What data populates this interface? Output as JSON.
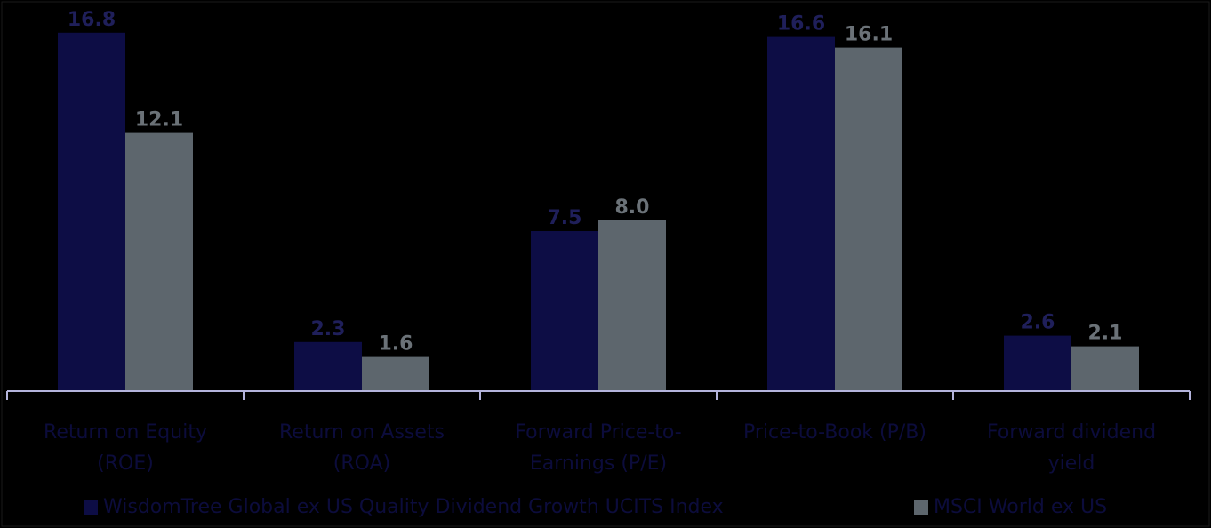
{
  "chart_data": {
    "type": "bar",
    "title": "",
    "xlabel": "",
    "ylabel": "",
    "ylim": [
      0,
      17.5
    ],
    "grid": false,
    "legend_placement": "bottom",
    "categories": [
      [
        "Return on Equity",
        "(ROE)"
      ],
      [
        "Return on Assets",
        "(ROA)"
      ],
      [
        "Forward Price-to-",
        "Earnings (P/E)"
      ],
      [
        "Price-to-Book (P/B)"
      ],
      [
        "Forward dividend",
        "yield"
      ]
    ],
    "series": [
      {
        "name": "WisdomTree Global ex US Quality Dividend Growth UCITS Index",
        "color": "#0d0d45",
        "label_color": "#1f1f5a",
        "values": [
          16.8,
          2.3,
          7.5,
          16.6,
          2.6
        ],
        "labels": [
          "16.8",
          "2.3",
          "7.5",
          "16.6",
          "2.6"
        ]
      },
      {
        "name": "MSCI World ex US",
        "color": "#5d666d",
        "label_color": "#6b7278",
        "values": [
          12.1,
          1.6,
          8.0,
          16.1,
          2.1
        ],
        "labels": [
          "12.1",
          "1.6",
          "8.0",
          "16.1",
          "2.1"
        ]
      }
    ],
    "axis_color": "#b4b4dc",
    "category_label_color": "#0c0c3c",
    "legend_text_color": "#0c0c3c"
  }
}
